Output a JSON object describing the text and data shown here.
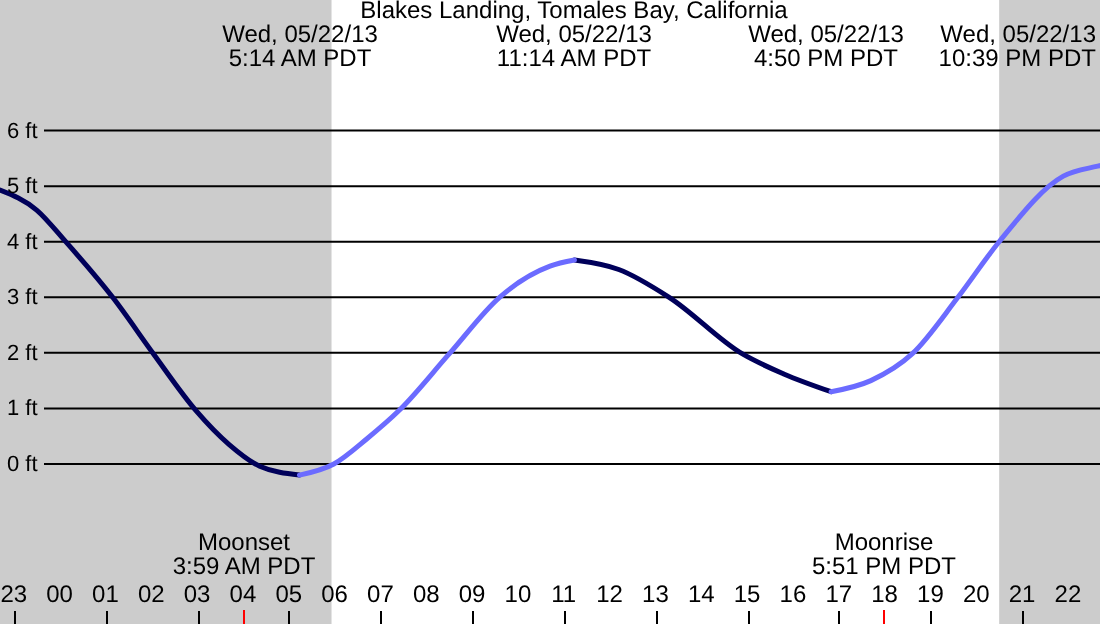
{
  "chart_data": {
    "type": "line",
    "title": "Blakes Landing, Tomales Bay, California",
    "x": [
      "--05-21T22:42",
      "--05-21T23:30",
      "--05-22T00:08",
      "--05-22T01:10",
      "--05-22T02:03",
      "--05-22T02:58",
      "--05-22T03:42",
      "--05-22T04:22",
      "--05-22T05:14",
      "--05-22T05:59",
      "--05-22T06:42",
      "--05-22T07:25",
      "--05-22T08:30",
      "--05-22T09:36",
      "--05-22T10:42",
      "--05-22T11:14",
      "--05-22T12:12",
      "--05-22T13:18",
      "--05-22T14:54",
      "--05-22T15:48",
      "--05-22T16:50",
      "--05-22T17:42",
      "--05-22T18:36",
      "--05-22T19:36",
      "--05-22T20:30",
      "--05-22T21:54",
      "--05-22T22:39",
      "--05-22T22:42"
    ],
    "series": [
      {
        "color": "#00005a",
        "values": [
          4.93,
          4.57,
          4.0,
          2.99,
          1.98,
          0.97,
          0.35,
          -0.04,
          -0.2,
          null,
          null,
          null,
          null,
          null,
          null,
          3.67,
          3.5,
          3.0,
          1.98,
          1.62,
          1.3,
          null,
          null,
          null,
          null,
          null,
          null,
          null
        ]
      },
      {
        "color": "#6b6bff",
        "values": [
          null,
          null,
          null,
          null,
          null,
          null,
          null,
          null,
          -0.2,
          0.0,
          0.45,
          0.97,
          1.98,
          3.0,
          3.56,
          3.67,
          null,
          null,
          null,
          null,
          1.3,
          1.5,
          1.98,
          3.0,
          4.0,
          5.18,
          5.36,
          5.37
        ]
      }
    ],
    "xlim": [
      "--05-21T22:42",
      "--05-22T22:42"
    ],
    "xticks": [
      {
        "value": "--05-21T23:00",
        "label": "23"
      },
      {
        "value": "--05-22T00:00",
        "label": "00"
      },
      {
        "value": "--05-22T01:00",
        "label": "01"
      },
      {
        "value": "--05-22T02:00",
        "label": "02"
      },
      {
        "value": "--05-22T03:00",
        "label": "03"
      },
      {
        "value": "--05-22T04:00",
        "label": "04"
      },
      {
        "value": "--05-22T05:00",
        "label": "05"
      },
      {
        "value": "--05-22T06:00",
        "label": "06"
      },
      {
        "value": "--05-22T07:00",
        "label": "07"
      },
      {
        "value": "--05-22T08:00",
        "label": "08"
      },
      {
        "value": "--05-22T09:00",
        "label": "09"
      },
      {
        "value": "--05-22T10:00",
        "label": "10"
      },
      {
        "value": "--05-22T11:00",
        "label": "11"
      },
      {
        "value": "--05-22T12:00",
        "label": "12"
      },
      {
        "value": "--05-22T13:00",
        "label": "13"
      },
      {
        "value": "--05-22T14:00",
        "label": "14"
      },
      {
        "value": "--05-22T15:00",
        "label": "15"
      },
      {
        "value": "--05-22T16:00",
        "label": "16"
      },
      {
        "value": "--05-22T17:00",
        "label": "17"
      },
      {
        "value": "--05-22T18:00",
        "label": "18"
      },
      {
        "value": "--05-22T19:00",
        "label": "19"
      },
      {
        "value": "--05-22T20:00",
        "label": "20"
      },
      {
        "value": "--05-22T21:00",
        "label": "21"
      },
      {
        "value": "--05-22T22:00",
        "label": "22"
      }
    ],
    "ylim": [
      -2.88,
      8.35
    ],
    "yticks": [
      {
        "value": 0,
        "label": "0 ft"
      },
      {
        "value": 1,
        "label": "1 ft"
      },
      {
        "value": 2,
        "label": "2 ft"
      },
      {
        "value": 3,
        "label": "3 ft"
      },
      {
        "value": 4,
        "label": "4 ft"
      },
      {
        "value": 5,
        "label": "5 ft"
      },
      {
        "value": 6,
        "label": "6 ft"
      }
    ],
    "grid": "y",
    "bands": [
      {
        "axis": "x",
        "from": "--05-21T22:42",
        "to": "--05-22T05:56",
        "color": "#cccccc"
      },
      {
        "axis": "x",
        "from": "--05-22T20:30",
        "to": "--05-22T22:42",
        "color": "#cccccc"
      }
    ],
    "annotations": [
      "Wed, 05/22/13\n5:14 AM PDT",
      "Wed, 05/22/13\n11:14 AM PDT",
      "Wed, 05/22/13\n4:50 PM PDT",
      "Wed, 05/22/13\n10:39 PM PDT",
      "Moonset\n3:59 AM PDT",
      "Moonrise\n5:51 PM PDT"
    ]
  }
}
